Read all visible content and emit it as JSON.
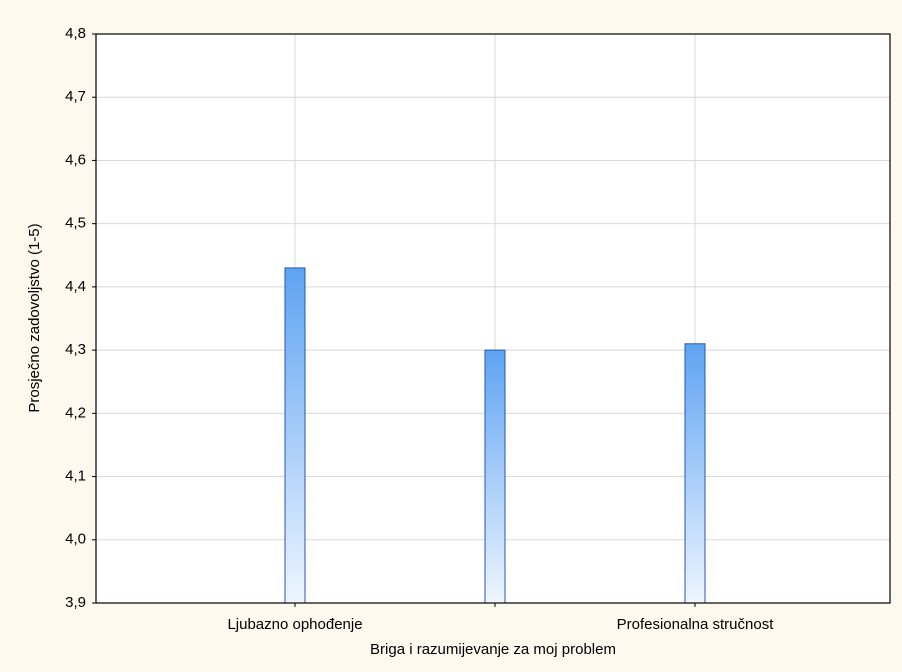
{
  "chart_data": {
    "type": "bar",
    "categories": [
      "Ljubazno ophođenje",
      null,
      "Profesionalna stručnost"
    ],
    "values": [
      4.43,
      4.3,
      4.31
    ],
    "color": "#5ea3f2",
    "x_label": "Briga i razumijevanje za moj problem",
    "y_label": "Prosječno zadovoljstvo (1-5)",
    "ylim": [
      3.9,
      4.8
    ],
    "yticks": [
      {
        "value": 3.9,
        "label": "3,9"
      },
      {
        "value": 4.0,
        "label": "4,0"
      },
      {
        "value": 4.1,
        "label": "4,1"
      },
      {
        "value": 4.2,
        "label": "4,2"
      },
      {
        "value": 4.3,
        "label": "4,3"
      },
      {
        "value": 4.4,
        "label": "4,4"
      },
      {
        "value": 4.5,
        "label": "4,5"
      },
      {
        "value": 4.6,
        "label": "4,6"
      },
      {
        "value": 4.7,
        "label": "4,7"
      },
      {
        "value": 4.8,
        "label": "4,8"
      }
    ],
    "grid": true
  }
}
